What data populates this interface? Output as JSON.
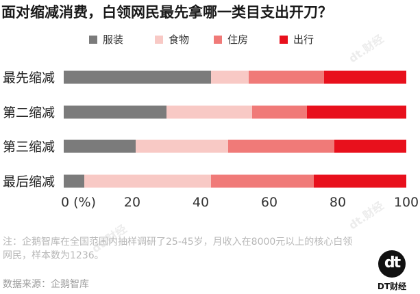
{
  "title": "面对缩减消费，白领网民最先拿哪一类目支出开刀？",
  "colors": {
    "clothing": "#7b7b7b",
    "food": "#f8c9c5",
    "housing": "#f07a78",
    "travel": "#e8101c"
  },
  "chart_data": {
    "type": "bar",
    "orientation": "horizontal",
    "stacked": true,
    "categories": [
      "最先缩减",
      "第二缩减",
      "第三缩减",
      "最后缩减"
    ],
    "series": [
      {
        "name": "服装",
        "color": "#7b7b7b",
        "values": [
          43,
          30,
          21,
          6
        ]
      },
      {
        "name": "食物",
        "color": "#f8c9c5",
        "values": [
          11,
          25,
          27,
          37
        ]
      },
      {
        "name": "住房",
        "color": "#f07a78",
        "values": [
          22,
          16,
          31,
          30
        ]
      },
      {
        "name": "出行",
        "color": "#e8101c",
        "values": [
          24,
          29,
          21,
          27
        ]
      }
    ],
    "x_ticks": [
      "0 (%)",
      "20",
      "40",
      "60",
      "80",
      "100"
    ],
    "xlim": [
      0,
      100
    ],
    "legend_position": "top",
    "grid": false
  },
  "note": "注：企鹅智库在全国范围内抽样调研了25-45岁，月收入在8000元以上的核心白领网民，样本数为1236。",
  "source": "数据来源：企鹅智库",
  "logo": {
    "mark": "dt",
    "name": "DT财经"
  },
  "watermark": "dt.财经"
}
